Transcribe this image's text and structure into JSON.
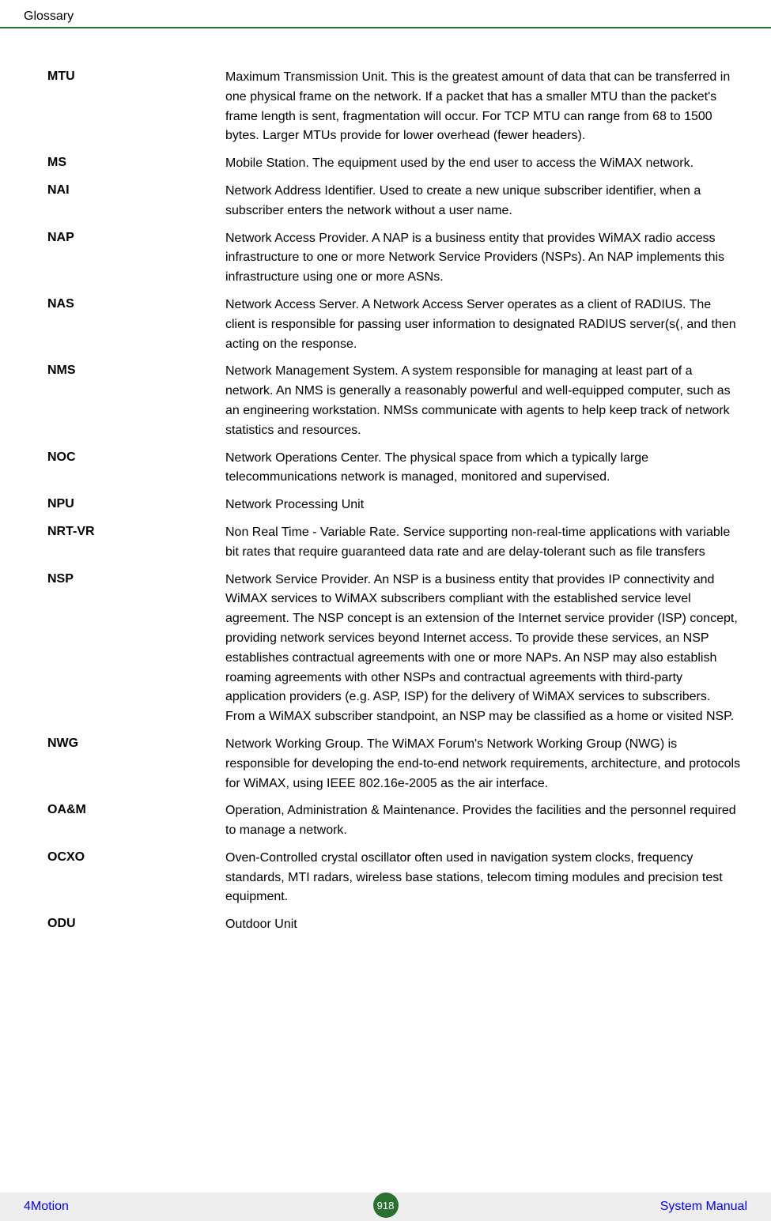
{
  "header": {
    "title": "Glossary"
  },
  "glossary": [
    {
      "term": "MTU",
      "definition": "Maximum Transmission Unit. This is the greatest amount of data that can be transferred in one physical frame on the network. If a packet that has a smaller MTU than the packet's frame length is sent, fragmentation will occur. For TCP MTU can range from 68 to 1500 bytes. Larger MTUs provide for lower overhead (fewer headers)."
    },
    {
      "term": "MS",
      "definition": "Mobile Station. The equipment used by the end user to access the WiMAX network."
    },
    {
      "term": "NAI",
      "definition": "Network Address Identifier. Used to create a new unique subscriber identifier, when a subscriber enters the network without a user name."
    },
    {
      "term": "NAP",
      "definition": "Network Access Provider. A NAP is a business entity that provides WiMAX radio access infrastructure to one or more Network Service Providers (NSPs). An NAP implements this infrastructure using one or more ASNs."
    },
    {
      "term": "NAS",
      "definition": "Network Access Server. A Network Access Server operates as a client of RADIUS. The client is responsible for passing user information to designated RADIUS server(s(, and then acting on the response."
    },
    {
      "term": "NMS",
      "definition": "Network Management System. A system responsible for managing at least part of a network. An NMS is generally a reasonably powerful and well-equipped computer, such as an engineering workstation. NMSs communicate with agents to help keep track of network statistics and resources."
    },
    {
      "term": "NOC",
      "definition": "Network Operations Center. The physical space from which a typically large telecommunications network is managed, monitored and supervised."
    },
    {
      "term": "NPU",
      "definition": "Network Processing Unit"
    },
    {
      "term": "NRT-VR",
      "definition": "Non Real Time - Variable Rate. Service supporting non-real-time applications with variable bit rates that require guaranteed data rate and are delay-tolerant such as file transfers"
    },
    {
      "term": "NSP",
      "definition": "Network Service Provider. An NSP is a business entity that provides IP connectivity and WiMAX services to WiMAX subscribers compliant with the established service level agreement. The NSP concept is an extension of the Internet service provider (ISP) concept, providing network services beyond Internet access. To provide these services, an NSP establishes contractual agreements with one or more NAPs. An NSP may also establish roaming agreements with other NSPs and contractual agreements with third-party application providers (e.g. ASP, ISP) for the delivery of WiMAX services to subscribers. From a WiMAX subscriber standpoint, an NSP may be classified as a home or visited NSP."
    },
    {
      "term": "NWG",
      "definition": "Network Working Group. The WiMAX Forum's Network Working Group (NWG) is responsible for developing the end-to-end network requirements, architecture, and protocols for WiMAX, using IEEE 802.16e-2005 as the air interface."
    },
    {
      "term": "OA&M",
      "definition": "Operation, Administration & Maintenance. Provides the facilities and the personnel required to manage a network."
    },
    {
      "term": "OCXO",
      "definition": "Oven-Controlled crystal oscillator often used in navigation system clocks, frequency standards, MTI radars, wireless base stations, telecom timing modules and precision test equipment."
    },
    {
      "term": "ODU",
      "definition": "Outdoor Unit"
    }
  ],
  "footer": {
    "left": "4Motion",
    "page": "918",
    "right": "System Manual"
  },
  "colors": {
    "rule": "#2a7030",
    "link": "#0000ff",
    "badge_bg": "#2a7030",
    "badge_text": "#ffffff",
    "footer_bg": "#eeeeee",
    "text": "#000000",
    "page_bg": "#ffffff"
  }
}
